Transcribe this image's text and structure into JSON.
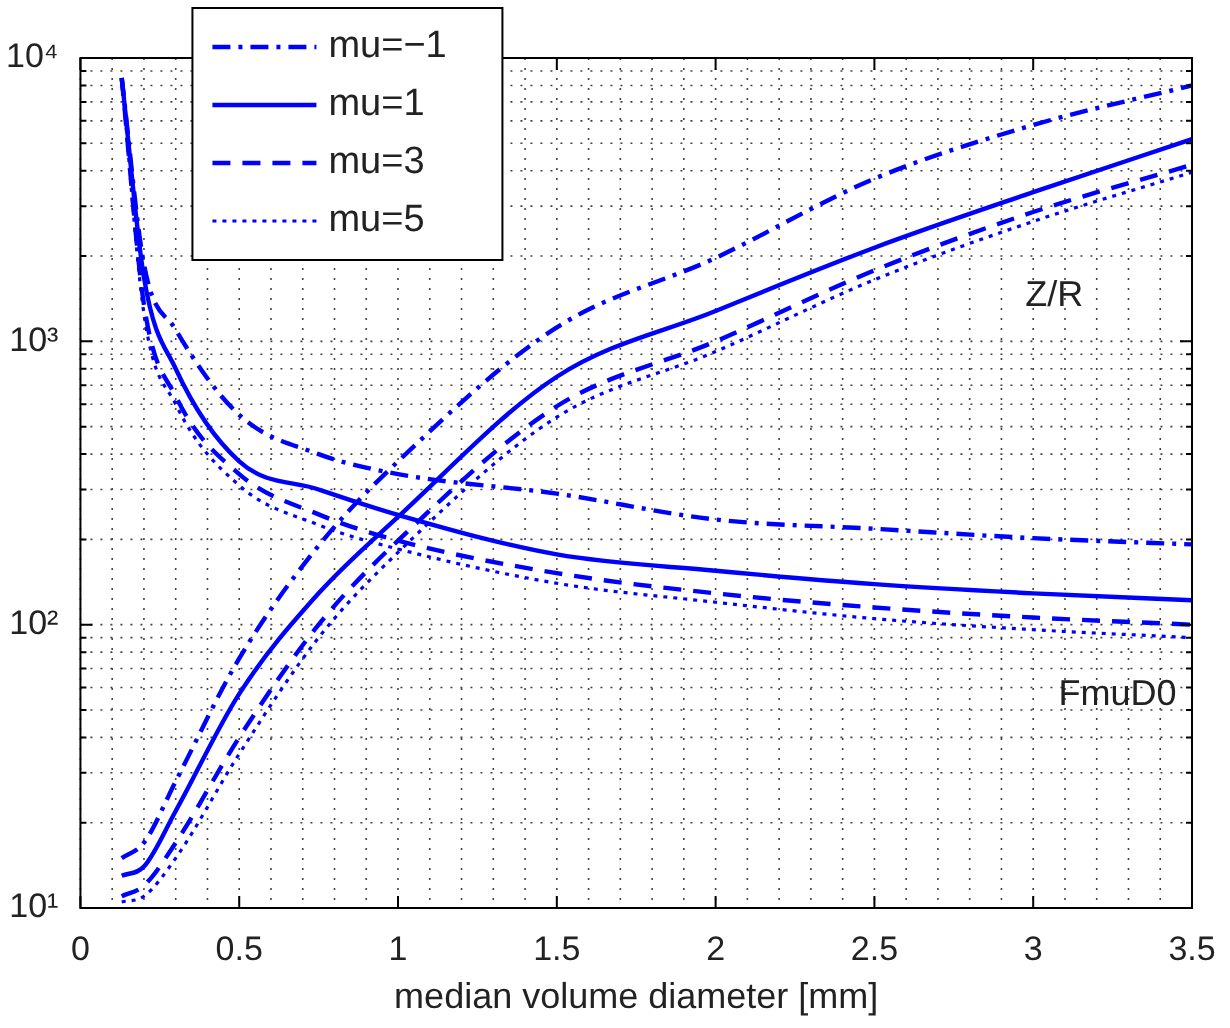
{
  "chart_data": {
    "type": "line",
    "xlabel": "median volume diameter [mm]",
    "xlim": [
      0,
      3.5
    ],
    "xticks": [
      0,
      0.5,
      1,
      1.5,
      2,
      2.5,
      3,
      3.5
    ],
    "ylim": [
      10,
      10000
    ],
    "yticks": [
      {
        "value": 10,
        "label": "10¹"
      },
      {
        "value": 100,
        "label": "10²"
      },
      {
        "value": 1000,
        "label": "10³"
      },
      {
        "value": 10000,
        "label": "10⁴"
      }
    ],
    "log": "y",
    "grid": true,
    "legend": "top left",
    "marker": "none",
    "x": [
      0.13,
      0.2,
      0.3,
      0.5,
      0.75,
      1,
      1.5,
      2,
      2.5,
      3,
      3.5
    ],
    "series": [
      {
        "name": "mu=−1",
        "color": "#0000ff",
        "line_style": "dashdot",
        "values": [
          8500,
          1870,
          1100,
          550,
          400,
          340,
          290,
          235,
          218,
          202,
          192
        ]
      },
      {
        "name": "mu=1",
        "color": "#0000ff",
        "line_style": "solid",
        "values": [
          8500,
          1680,
          800,
          377,
          300,
          244,
          177,
          155,
          139,
          129,
          122
        ]
      },
      {
        "name": "mu=3",
        "color": "#0000ff",
        "line_style": "dashed",
        "values": [
          8500,
          1350,
          640,
          340,
          245,
          198,
          152,
          129,
          115,
          106,
          100
        ]
      },
      {
        "name": "mu=5",
        "color": "#0000ff",
        "line_style": "dotted",
        "values": [
          8500,
          1250,
          600,
          310,
          225,
          185,
          140,
          120,
          105,
          96,
          90
        ]
      },
      {
        "color": "#0000ff",
        "line_style": "dashdot",
        "values": [
          15,
          17,
          28,
          76,
          190,
          377,
          1120,
          1970,
          3750,
          5800,
          8000
        ]
      },
      {
        "color": "#0000ff",
        "line_style": "solid",
        "values": [
          13,
          14,
          22,
          57,
          129,
          240,
          750,
          1280,
          2140,
          3360,
          5170
        ]
      },
      {
        "color": "#0000ff",
        "line_style": "dashed",
        "values": [
          11,
          12,
          17,
          40,
          100,
          198,
          590,
          1000,
          1780,
          2860,
          4200
        ]
      },
      {
        "color": "#0000ff",
        "line_style": "dotted",
        "values": [
          10.5,
          11,
          15,
          35,
          90,
          180,
          540,
          920,
          1650,
          2650,
          3950
        ]
      }
    ],
    "annotations": [
      "Z/R",
      "FmuD0"
    ]
  }
}
